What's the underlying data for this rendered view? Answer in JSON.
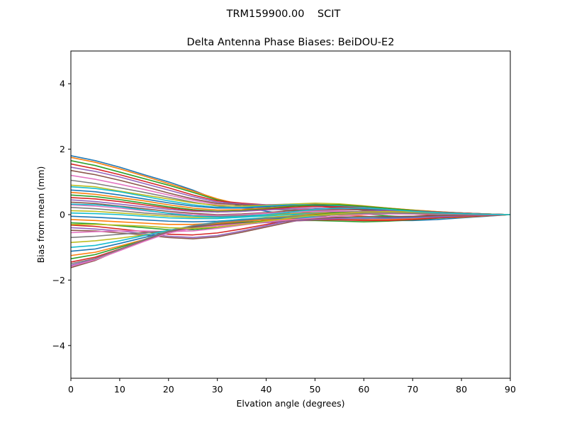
{
  "header": {
    "suptitle": "TRM159900.00    SCIT"
  },
  "chart_data": {
    "type": "line",
    "title": "Delta Antenna Phase Biases: BeiDOU-E2",
    "xlabel": "Elvation angle (degrees)",
    "ylabel": "Bias from mean (mm)",
    "xlim": [
      0,
      90
    ],
    "ylim": [
      -5,
      5
    ],
    "xticks": [
      0,
      10,
      20,
      30,
      40,
      50,
      60,
      70,
      80,
      90
    ],
    "yticks": [
      -4,
      -2,
      0,
      2,
      4
    ],
    "ytick_labels": [
      "−4",
      "−2",
      "0",
      "2",
      "4"
    ],
    "grid": false,
    "legend": "none",
    "colors": [
      "#1f77b4",
      "#ff7f0e",
      "#2ca02c",
      "#d62728",
      "#9467bd",
      "#8c564b",
      "#e377c2",
      "#7f7f7f",
      "#bcbd22",
      "#17becf"
    ],
    "x": [
      0,
      5,
      10,
      15,
      20,
      25,
      30,
      35,
      40,
      45,
      50,
      55,
      60,
      65,
      70,
      75,
      80,
      85,
      90
    ],
    "series": [
      {
        "values": [
          1.8,
          1.65,
          1.45,
          1.22,
          1.0,
          0.75,
          0.45,
          0.25,
          0.1,
          0.0,
          -0.05,
          -0.1,
          -0.15,
          -0.18,
          -0.18,
          -0.15,
          -0.1,
          -0.05,
          0.0
        ]
      },
      {
        "values": [
          1.75,
          1.6,
          1.4,
          1.18,
          0.95,
          0.72,
          0.48,
          0.3,
          0.2,
          0.12,
          0.05,
          0.0,
          -0.05,
          -0.1,
          -0.12,
          -0.1,
          -0.08,
          -0.04,
          0.0
        ]
      },
      {
        "values": [
          1.65,
          1.5,
          1.3,
          1.1,
          0.9,
          0.68,
          0.45,
          0.3,
          0.22,
          0.18,
          0.12,
          0.08,
          0.02,
          -0.04,
          -0.08,
          -0.08,
          -0.06,
          -0.03,
          0.0
        ]
      },
      {
        "values": [
          1.55,
          1.4,
          1.22,
          1.02,
          0.82,
          0.6,
          0.42,
          0.35,
          0.3,
          0.3,
          0.26,
          0.2,
          0.14,
          0.08,
          0.02,
          -0.02,
          -0.03,
          -0.02,
          0.0
        ]
      },
      {
        "values": [
          1.45,
          1.32,
          1.15,
          0.95,
          0.75,
          0.55,
          0.38,
          0.32,
          0.3,
          0.32,
          0.32,
          0.28,
          0.22,
          0.16,
          0.1,
          0.06,
          0.03,
          0.01,
          0.0
        ]
      },
      {
        "values": [
          1.35,
          1.22,
          1.05,
          0.86,
          0.66,
          0.48,
          0.34,
          0.3,
          0.28,
          0.28,
          0.26,
          0.22,
          0.17,
          0.12,
          0.08,
          0.05,
          0.02,
          0.01,
          0.0
        ]
      },
      {
        "values": [
          1.2,
          1.08,
          0.93,
          0.77,
          0.6,
          0.44,
          0.3,
          0.24,
          0.2,
          0.18,
          0.15,
          0.12,
          0.08,
          0.05,
          0.03,
          0.02,
          0.01,
          0.0,
          0.0
        ]
      },
      {
        "values": [
          1.05,
          0.95,
          0.82,
          0.68,
          0.53,
          0.38,
          0.26,
          0.2,
          0.16,
          0.14,
          0.12,
          0.1,
          0.07,
          0.04,
          0.02,
          0.01,
          0.0,
          0.0,
          0.0
        ]
      },
      {
        "values": [
          0.9,
          0.85,
          0.72,
          0.6,
          0.48,
          0.36,
          0.28,
          0.26,
          0.28,
          0.32,
          0.35,
          0.33,
          0.27,
          0.2,
          0.14,
          0.09,
          0.05,
          0.02,
          0.0
        ]
      },
      {
        "values": [
          0.85,
          0.8,
          0.7,
          0.56,
          0.42,
          0.3,
          0.22,
          0.22,
          0.26,
          0.3,
          0.3,
          0.26,
          0.2,
          0.14,
          0.09,
          0.05,
          0.02,
          0.01,
          0.0
        ]
      },
      {
        "values": [
          0.75,
          0.7,
          0.6,
          0.48,
          0.36,
          0.26,
          0.2,
          0.2,
          0.24,
          0.28,
          0.28,
          0.24,
          0.19,
          0.13,
          0.08,
          0.05,
          0.02,
          0.01,
          0.0
        ]
      },
      {
        "values": [
          0.68,
          0.62,
          0.52,
          0.42,
          0.3,
          0.2,
          0.14,
          0.15,
          0.2,
          0.26,
          0.3,
          0.3,
          0.26,
          0.2,
          0.14,
          0.09,
          0.05,
          0.02,
          0.0
        ]
      },
      {
        "values": [
          0.6,
          0.55,
          0.46,
          0.35,
          0.24,
          0.15,
          0.1,
          0.12,
          0.18,
          0.25,
          0.3,
          0.3,
          0.25,
          0.19,
          0.13,
          0.08,
          0.04,
          0.02,
          0.0
        ]
      },
      {
        "values": [
          0.52,
          0.48,
          0.4,
          0.3,
          0.2,
          0.12,
          0.08,
          0.1,
          0.16,
          0.22,
          0.25,
          0.24,
          0.2,
          0.15,
          0.1,
          0.06,
          0.03,
          0.01,
          0.0
        ]
      },
      {
        "values": [
          0.45,
          0.4,
          0.32,
          0.24,
          0.16,
          0.1,
          0.08,
          0.1,
          0.14,
          0.18,
          0.2,
          0.18,
          0.14,
          0.1,
          0.06,
          0.03,
          0.01,
          0.0,
          0.0
        ]
      },
      {
        "values": [
          0.38,
          0.34,
          0.26,
          0.18,
          0.1,
          0.04,
          0.0,
          0.02,
          0.06,
          0.12,
          0.16,
          0.16,
          0.14,
          0.1,
          0.07,
          0.04,
          0.02,
          0.01,
          0.0
        ]
      },
      {
        "values": [
          0.3,
          0.26,
          0.2,
          0.12,
          0.05,
          0.0,
          -0.02,
          0.0,
          0.04,
          0.08,
          0.1,
          0.1,
          0.08,
          0.06,
          0.04,
          0.02,
          0.01,
          0.0,
          0.0
        ]
      },
      {
        "values": [
          0.22,
          0.18,
          0.12,
          0.05,
          0.0,
          -0.04,
          -0.05,
          -0.03,
          0.0,
          0.04,
          0.06,
          0.07,
          0.06,
          0.04,
          0.03,
          0.02,
          0.01,
          0.0,
          0.0
        ]
      },
      {
        "values": [
          0.12,
          0.1,
          0.05,
          0.0,
          -0.05,
          -0.08,
          -0.08,
          -0.06,
          -0.02,
          0.02,
          0.04,
          0.05,
          0.05,
          0.04,
          0.03,
          0.02,
          0.01,
          0.0,
          0.0
        ]
      },
      {
        "values": [
          0.05,
          0.03,
          0.0,
          -0.05,
          -0.1,
          -0.12,
          -0.12,
          -0.08,
          -0.04,
          0.0,
          0.03,
          0.04,
          0.04,
          0.04,
          0.03,
          0.02,
          0.01,
          0.0,
          0.0
        ]
      },
      {
        "values": [
          -0.05,
          -0.08,
          -0.12,
          -0.16,
          -0.2,
          -0.22,
          -0.2,
          -0.15,
          -0.1,
          -0.05,
          0.0,
          0.03,
          0.05,
          0.05,
          0.04,
          0.03,
          0.02,
          0.01,
          0.0
        ]
      },
      {
        "values": [
          -0.15,
          -0.18,
          -0.22,
          -0.26,
          -0.3,
          -0.3,
          -0.26,
          -0.2,
          -0.12,
          -0.05,
          0.02,
          0.06,
          0.08,
          0.08,
          0.07,
          0.05,
          0.03,
          0.01,
          0.0
        ]
      },
      {
        "values": [
          -0.25,
          -0.28,
          -0.34,
          -0.4,
          -0.46,
          -0.46,
          -0.4,
          -0.3,
          -0.18,
          -0.08,
          0.0,
          0.06,
          0.1,
          0.1,
          0.09,
          0.07,
          0.04,
          0.02,
          0.0
        ]
      },
      {
        "values": [
          -0.32,
          -0.36,
          -0.44,
          -0.52,
          -0.6,
          -0.62,
          -0.56,
          -0.44,
          -0.3,
          -0.16,
          -0.05,
          0.04,
          0.1,
          0.12,
          0.11,
          0.08,
          0.05,
          0.02,
          0.0
        ]
      },
      {
        "values": [
          -0.4,
          -0.44,
          -0.5,
          -0.58,
          -0.66,
          -0.7,
          -0.64,
          -0.5,
          -0.34,
          -0.18,
          -0.06,
          0.04,
          0.1,
          0.12,
          0.11,
          0.08,
          0.05,
          0.02,
          0.0
        ]
      },
      {
        "values": [
          -0.48,
          -0.5,
          -0.56,
          -0.62,
          -0.7,
          -0.74,
          -0.68,
          -0.54,
          -0.38,
          -0.22,
          -0.08,
          0.02,
          0.08,
          0.1,
          0.1,
          0.08,
          0.05,
          0.02,
          0.0
        ]
      },
      {
        "values": [
          -0.55,
          -0.52,
          -0.5,
          -0.5,
          -0.52,
          -0.5,
          -0.42,
          -0.32,
          -0.22,
          -0.12,
          -0.05,
          0.0,
          0.04,
          0.06,
          0.06,
          0.05,
          0.03,
          0.01,
          0.0
        ]
      },
      {
        "values": [
          -0.7,
          -0.66,
          -0.6,
          -0.55,
          -0.5,
          -0.42,
          -0.32,
          -0.22,
          -0.14,
          -0.08,
          -0.04,
          0.0,
          0.03,
          0.05,
          0.05,
          0.04,
          0.02,
          0.01,
          0.0
        ]
      },
      {
        "values": [
          -0.85,
          -0.8,
          -0.72,
          -0.62,
          -0.5,
          -0.38,
          -0.26,
          -0.16,
          -0.08,
          -0.04,
          -0.02,
          0.0,
          0.02,
          0.03,
          0.03,
          0.03,
          0.02,
          0.01,
          0.0
        ]
      },
      {
        "values": [
          -1.0,
          -0.94,
          -0.8,
          -0.64,
          -0.48,
          -0.34,
          -0.22,
          -0.14,
          -0.1,
          -0.08,
          -0.08,
          -0.08,
          -0.08,
          -0.07,
          -0.05,
          -0.03,
          -0.02,
          -0.01,
          0.0
        ]
      },
      {
        "values": [
          -1.12,
          -1.05,
          -0.88,
          -0.7,
          -0.52,
          -0.36,
          -0.24,
          -0.16,
          -0.12,
          -0.12,
          -0.12,
          -0.12,
          -0.12,
          -0.1,
          -0.08,
          -0.05,
          -0.03,
          -0.01,
          0.0
        ]
      },
      {
        "values": [
          -1.25,
          -1.15,
          -0.96,
          -0.76,
          -0.56,
          -0.4,
          -0.28,
          -0.2,
          -0.16,
          -0.14,
          -0.14,
          -0.15,
          -0.16,
          -0.15,
          -0.12,
          -0.08,
          -0.05,
          -0.02,
          0.0
        ]
      },
      {
        "values": [
          -1.35,
          -1.22,
          -1.0,
          -0.78,
          -0.56,
          -0.4,
          -0.3,
          -0.24,
          -0.2,
          -0.18,
          -0.18,
          -0.2,
          -0.22,
          -0.2,
          -0.16,
          -0.11,
          -0.06,
          -0.03,
          0.0
        ]
      },
      {
        "values": [
          -1.45,
          -1.3,
          -1.05,
          -0.8,
          -0.56,
          -0.42,
          -0.34,
          -0.28,
          -0.24,
          -0.2,
          -0.16,
          -0.16,
          -0.18,
          -0.18,
          -0.15,
          -0.1,
          -0.06,
          -0.03,
          0.0
        ]
      },
      {
        "values": [
          -1.55,
          -1.36,
          -1.08,
          -0.8,
          -0.54,
          -0.4,
          -0.32,
          -0.28,
          -0.24,
          -0.2,
          -0.15,
          -0.12,
          -0.12,
          -0.12,
          -0.1,
          -0.07,
          -0.04,
          -0.02,
          0.0
        ]
      },
      {
        "values": [
          -1.62,
          -1.4,
          -1.08,
          -0.78,
          -0.52,
          -0.38,
          -0.3,
          -0.26,
          -0.22,
          -0.18,
          -0.12,
          -0.08,
          -0.06,
          -0.06,
          -0.05,
          -0.03,
          -0.02,
          -0.01,
          0.0
        ]
      },
      {
        "values": [
          -1.58,
          -1.38,
          -1.1,
          -0.82,
          -0.56,
          -0.42,
          -0.34,
          -0.28,
          -0.22,
          -0.16,
          -0.1,
          -0.04,
          0.0,
          0.02,
          0.02,
          0.02,
          0.01,
          0.0,
          0.0
        ]
      },
      {
        "values": [
          -1.5,
          -1.34,
          -1.06,
          -0.76,
          -0.5,
          -0.34,
          -0.24,
          -0.18,
          -0.12,
          -0.06,
          -0.02,
          0.02,
          0.04,
          0.05,
          0.04,
          0.03,
          0.02,
          0.01,
          0.0
        ]
      },
      {
        "values": [
          -0.3,
          -0.3,
          -0.32,
          -0.35,
          -0.4,
          -0.42,
          -0.38,
          -0.3,
          -0.2,
          -0.1,
          -0.02,
          0.04,
          0.08,
          0.09,
          0.08,
          0.06,
          0.03,
          0.01,
          0.0
        ]
      },
      {
        "values": [
          0.32,
          0.3,
          0.24,
          0.14,
          0.04,
          -0.04,
          -0.08,
          -0.06,
          0.0,
          0.08,
          0.16,
          0.2,
          0.2,
          0.16,
          0.1,
          0.06,
          0.03,
          0.01,
          0.0
        ]
      }
    ]
  }
}
